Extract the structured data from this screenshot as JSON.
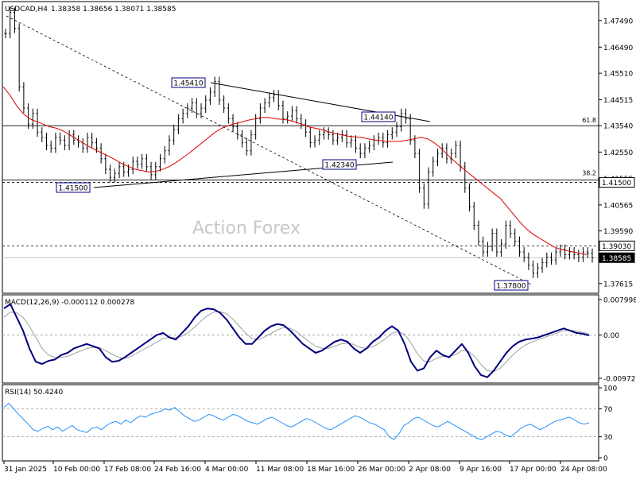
{
  "header": {
    "symbol": "USDCAD,H4",
    "ohlc": "1.38358 1.38656 1.38071 1.38585"
  },
  "watermark": "Action Forex",
  "colors": {
    "price": "#000000",
    "ma": "#e00000",
    "macd_main": "#000080",
    "macd_signal": "#a0a0a0",
    "rsi": "#1e90ff",
    "label_border": "#000080",
    "frame": "#000000"
  },
  "chart_data": [
    {
      "type": "line",
      "name": "price-panel",
      "title": "USDCAD,H4",
      "ylim": [
        1.3725,
        1.482
      ],
      "y_ticks": [
        "1.47490",
        "1.46490",
        "1.45510",
        "1.44515",
        "1.43540",
        "1.42550",
        "1.41555",
        "1.40565",
        "1.39590",
        "1.38595",
        "1.37615"
      ],
      "x_ticks": [
        "31 Jan 2025",
        "10 Feb 00:00",
        "17 Feb 08:00",
        "24 Feb 16:00",
        "4 Mar 00:00",
        "11 Mar 08:00",
        "18 Mar 16:00",
        "26 Mar 00:00",
        "2 Apr 08:00",
        "9 Apr 16:00",
        "17 Apr 00:00",
        "24 Apr 08:00"
      ],
      "series": [
        {
          "values": [
            1.47,
            1.478,
            1.472,
            1.45,
            1.442,
            1.436,
            1.44,
            1.433,
            1.431,
            1.428,
            1.427,
            1.431,
            1.43,
            1.428,
            1.432,
            1.43,
            1.429,
            1.427,
            1.431,
            1.429,
            1.427,
            1.423,
            1.419,
            1.416,
            1.4175,
            1.42,
            1.418,
            1.419,
            1.422,
            1.421,
            1.423,
            1.42,
            1.417,
            1.42,
            1.423,
            1.426,
            1.43,
            1.434,
            1.438,
            1.44,
            1.442,
            1.444,
            1.44,
            1.442,
            1.445,
            1.448,
            1.452,
            1.445,
            1.442,
            1.438,
            1.435,
            1.432,
            1.429,
            1.426,
            1.432,
            1.438,
            1.442,
            1.444,
            1.446,
            1.447,
            1.443,
            1.438,
            1.439,
            1.441,
            1.438,
            1.436,
            1.433,
            1.429,
            1.43,
            1.432,
            1.433,
            1.432,
            1.43,
            1.431,
            1.432,
            1.429,
            1.43,
            1.427,
            1.425,
            1.427,
            1.428,
            1.43,
            1.431,
            1.429,
            1.432,
            1.433,
            1.435,
            1.44,
            1.438,
            1.43,
            1.425,
            1.412,
            1.406,
            1.418,
            1.422,
            1.425,
            1.427,
            1.423,
            1.425,
            1.428,
            1.42,
            1.412,
            1.405,
            1.398,
            1.392,
            1.388,
            1.39,
            1.395,
            1.388,
            1.391,
            1.398,
            1.395,
            1.392,
            1.388,
            1.386,
            1.383,
            1.38,
            1.382,
            1.384,
            1.386,
            1.385,
            1.388,
            1.389,
            1.387,
            1.388,
            1.387,
            1.386,
            1.388,
            1.3875,
            1.3858
          ]
        },
        {
          "values": [
            1.45,
            1.447,
            1.443,
            1.44,
            1.438,
            1.437,
            1.436,
            1.435,
            1.4345,
            1.4335,
            1.432,
            1.4305,
            1.429,
            1.4275,
            1.4262,
            1.425,
            1.4238,
            1.4225,
            1.421,
            1.42,
            1.419,
            1.4185,
            1.418,
            1.4182,
            1.419,
            1.42,
            1.4215,
            1.4232,
            1.425,
            1.427,
            1.429,
            1.431,
            1.433,
            1.4345,
            1.4355,
            1.4362,
            1.4368,
            1.4375,
            1.438,
            1.4385,
            1.4385,
            1.438,
            1.4378,
            1.4375,
            1.4368,
            1.436,
            1.435,
            1.4345,
            1.434,
            1.4332,
            1.4325,
            1.432,
            1.4315,
            1.4312,
            1.431,
            1.4305,
            1.43,
            1.4298,
            1.4295,
            1.4295,
            1.4296,
            1.43,
            1.4305,
            1.431,
            1.4305,
            1.429,
            1.427,
            1.4245,
            1.4222,
            1.42,
            1.418,
            1.416,
            1.414,
            1.412,
            1.41,
            1.408,
            1.405,
            1.402,
            1.399,
            1.3965,
            1.3945,
            1.393,
            1.3915,
            1.39,
            1.389,
            1.3885,
            1.388,
            1.3875,
            1.387
          ]
        }
      ],
      "annotations": [
        "1.45410",
        "1.44140",
        "1.42340",
        "1.41500",
        "1.37800"
      ],
      "fib_levels": [
        {
          "label": "61.8",
          "value": "1.43540"
        },
        {
          "label": "38.2",
          "value": "1.41500"
        }
      ],
      "right_labels": [
        "1.41500",
        "1.39030",
        "1.38585"
      ],
      "grid": false
    },
    {
      "type": "line",
      "name": "macd-panel",
      "title": "MACD(12,26,9) -0.000112 0.000278",
      "ylim": [
        -0.009727,
        0.007998
      ],
      "y_ticks": [
        "0.007998",
        "0.00",
        "-0.009727"
      ],
      "series": [
        {
          "values": [
            0.006,
            0.007,
            0.004,
            0.001,
            -0.003,
            -0.006,
            -0.0065,
            -0.0058,
            -0.0055,
            -0.0045,
            -0.004,
            -0.003,
            -0.0025,
            -0.002,
            -0.0025,
            -0.003,
            -0.005,
            -0.006,
            -0.0058,
            -0.005,
            -0.004,
            -0.003,
            -0.002,
            -0.001,
            0.0,
            0.0005,
            -0.0005,
            -0.001,
            0.0005,
            0.002,
            0.004,
            0.0055,
            0.006,
            0.0058,
            0.005,
            0.0035,
            0.0015,
            -0.0005,
            -0.002,
            -0.002,
            -0.0005,
            0.001,
            0.002,
            0.0025,
            0.0022,
            0.001,
            -0.0005,
            -0.002,
            -0.003,
            -0.004,
            -0.0035,
            -0.0025,
            -0.0015,
            -0.001,
            -0.0015,
            -0.003,
            -0.004,
            -0.003,
            -0.0015,
            -0.0005,
            0.001,
            0.002,
            0.001,
            -0.002,
            -0.006,
            -0.008,
            -0.0075,
            -0.005,
            -0.0035,
            -0.0045,
            -0.005,
            -0.0035,
            -0.002,
            -0.004,
            -0.007,
            -0.009,
            -0.0095,
            -0.008,
            -0.006,
            -0.004,
            -0.0025,
            -0.0015,
            -0.001,
            -0.0008,
            -0.0005,
            0.0,
            0.0005,
            0.001,
            0.0015,
            0.001,
            0.0005,
            0.0003,
            -0.0001
          ]
        },
        {
          "values": [
            0.004,
            0.0052,
            0.005,
            0.004,
            0.002,
            -0.0005,
            -0.003,
            -0.0045,
            -0.005,
            -0.005,
            -0.0048,
            -0.0042,
            -0.0036,
            -0.003,
            -0.0028,
            -0.0028,
            -0.0035,
            -0.0043,
            -0.005,
            -0.0052,
            -0.0048,
            -0.004,
            -0.0032,
            -0.0024,
            -0.0016,
            -0.0008,
            -0.0005,
            -0.0006,
            -0.0002,
            0.0006,
            0.0018,
            0.0032,
            0.0044,
            0.0052,
            0.0053,
            0.0048,
            0.0036,
            0.002,
            0.0004,
            -0.0008,
            -0.001,
            -0.0004,
            0.0004,
            0.0012,
            0.0017,
            0.0015,
            0.0008,
            -0.0004,
            -0.0015,
            -0.0025,
            -0.003,
            -0.003,
            -0.0025,
            -0.002,
            -0.0018,
            -0.0021,
            -0.0028,
            -0.003,
            -0.0026,
            -0.0018,
            -0.0008,
            0.0004,
            0.0008,
            0.0002,
            -0.0018,
            -0.0042,
            -0.0058,
            -0.006,
            -0.0052,
            -0.0048,
            -0.0048,
            -0.0044,
            -0.0035,
            -0.0036,
            -0.0048,
            -0.0066,
            -0.008,
            -0.0082,
            -0.0075,
            -0.006,
            -0.0045,
            -0.0032,
            -0.0022,
            -0.0016,
            -0.001,
            -0.0005,
            0.0,
            0.0005,
            0.001,
            0.0011,
            0.0009,
            0.0006,
            0.0003
          ]
        }
      ]
    },
    {
      "type": "line",
      "name": "rsi-panel",
      "title": "RSI(14) 50.4240",
      "ylim": [
        0,
        100
      ],
      "y_ticks": [
        "100",
        "70",
        "30",
        "0"
      ],
      "levels": [
        70,
        30
      ],
      "series": [
        {
          "values": [
            72,
            78,
            70,
            62,
            55,
            48,
            40,
            38,
            42,
            45,
            40,
            44,
            38,
            42,
            46,
            40,
            38,
            36,
            42,
            44,
            40,
            46,
            50,
            52,
            48,
            54,
            50,
            56,
            60,
            58,
            62,
            64,
            66,
            70,
            68,
            72,
            66,
            60,
            56,
            52,
            54,
            58,
            62,
            60,
            56,
            54,
            58,
            62,
            60,
            56,
            52,
            50,
            48,
            52,
            56,
            58,
            54,
            50,
            46,
            44,
            48,
            52,
            56,
            54,
            50,
            46,
            42,
            40,
            44,
            48,
            52,
            56,
            60,
            58,
            54,
            50,
            48,
            44,
            40,
            30,
            26,
            34,
            46,
            50,
            56,
            58,
            54,
            50,
            46,
            44,
            48,
            52,
            48,
            44,
            40,
            36,
            32,
            28,
            26,
            30,
            34,
            38,
            36,
            32,
            30,
            36,
            42,
            46,
            48,
            44,
            40,
            44,
            48,
            52,
            54,
            56,
            58,
            54,
            50,
            48,
            50
          ]
        }
      ]
    }
  ]
}
